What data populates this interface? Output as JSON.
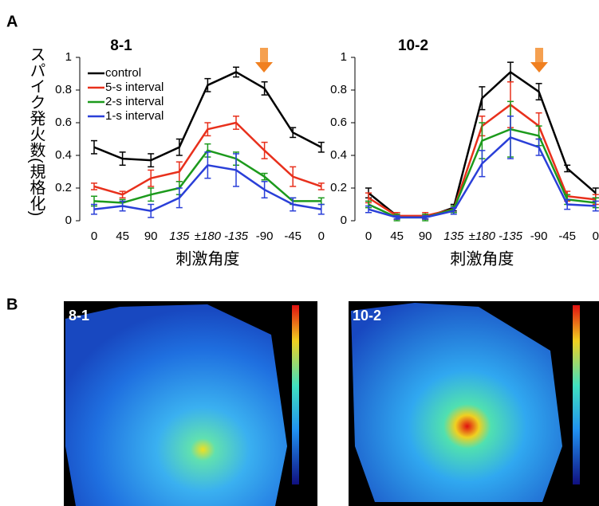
{
  "panel_labels": [
    "A",
    "B"
  ],
  "chart_data": [
    {
      "type": "line",
      "title": "8-1",
      "xlabel": "刺激角度",
      "ylabel": "スパイク発火数(規格化)",
      "categories": [
        "0",
        "45",
        "90",
        "135",
        "±180",
        "-135",
        "-90",
        "-45",
        "0"
      ],
      "ylim": [
        0,
        1
      ],
      "yticks": [
        0,
        0.2,
        0.4,
        0.6,
        0.8,
        1
      ],
      "legend": "upper left",
      "series": [
        {
          "name": "control",
          "color": "#000000",
          "values": [
            0.45,
            0.38,
            0.37,
            0.45,
            0.83,
            0.91,
            0.81,
            0.54,
            0.45
          ],
          "errors": [
            0.04,
            0.04,
            0.04,
            0.05,
            0.04,
            0.03,
            0.04,
            0.03,
            0.03
          ]
        },
        {
          "name": "5-s interval",
          "color": "#e8301c",
          "values": [
            0.21,
            0.16,
            0.26,
            0.3,
            0.56,
            0.6,
            0.43,
            0.27,
            0.21
          ],
          "errors": [
            0.02,
            0.02,
            0.05,
            0.06,
            0.04,
            0.04,
            0.05,
            0.06,
            0.02
          ]
        },
        {
          "name": "2-s interval",
          "color": "#1c9a1c",
          "values": [
            0.12,
            0.11,
            0.16,
            0.2,
            0.43,
            0.38,
            0.27,
            0.12,
            0.12
          ],
          "errors": [
            0.03,
            0.02,
            0.04,
            0.04,
            0.04,
            0.04,
            0.02,
            0.02,
            0.02
          ]
        },
        {
          "name": "1-s interval",
          "color": "#2a3fd8",
          "values": [
            0.07,
            0.09,
            0.06,
            0.14,
            0.34,
            0.31,
            0.19,
            0.1,
            0.07
          ],
          "errors": [
            0.03,
            0.03,
            0.04,
            0.06,
            0.08,
            0.1,
            0.05,
            0.04,
            0.03
          ]
        }
      ]
    },
    {
      "type": "line",
      "title": "10-2",
      "xlabel": "刺激角度",
      "categories": [
        "0",
        "45",
        "90",
        "135",
        "±180",
        "-135",
        "-90",
        "-45",
        "0"
      ],
      "ylim": [
        0,
        1
      ],
      "yticks": [
        0,
        0.2,
        0.4,
        0.6,
        0.8,
        1
      ],
      "series": [
        {
          "color": "#000000",
          "values": [
            0.17,
            0.03,
            0.02,
            0.08,
            0.75,
            0.91,
            0.79,
            0.32,
            0.17
          ],
          "errors": [
            0.03,
            0.02,
            0.01,
            0.02,
            0.07,
            0.06,
            0.05,
            0.02,
            0.03
          ]
        },
        {
          "color": "#e8301c",
          "values": [
            0.14,
            0.03,
            0.03,
            0.07,
            0.58,
            0.71,
            0.58,
            0.15,
            0.13
          ],
          "errors": [
            0.03,
            0.02,
            0.02,
            0.02,
            0.06,
            0.14,
            0.08,
            0.03,
            0.03
          ]
        },
        {
          "color": "#1c9a1c",
          "values": [
            0.1,
            0.02,
            0.02,
            0.07,
            0.49,
            0.56,
            0.52,
            0.13,
            0.11
          ],
          "errors": [
            0.02,
            0.02,
            0.02,
            0.02,
            0.11,
            0.17,
            0.06,
            0.03,
            0.03
          ]
        },
        {
          "color": "#2a3fd8",
          "values": [
            0.07,
            0.02,
            0.02,
            0.06,
            0.35,
            0.51,
            0.45,
            0.1,
            0.09
          ],
          "errors": [
            0.02,
            0.01,
            0.01,
            0.02,
            0.08,
            0.13,
            0.05,
            0.03,
            0.03
          ]
        }
      ]
    }
  ],
  "images": [
    {
      "label": "8-1"
    },
    {
      "label": "10-2"
    }
  ]
}
